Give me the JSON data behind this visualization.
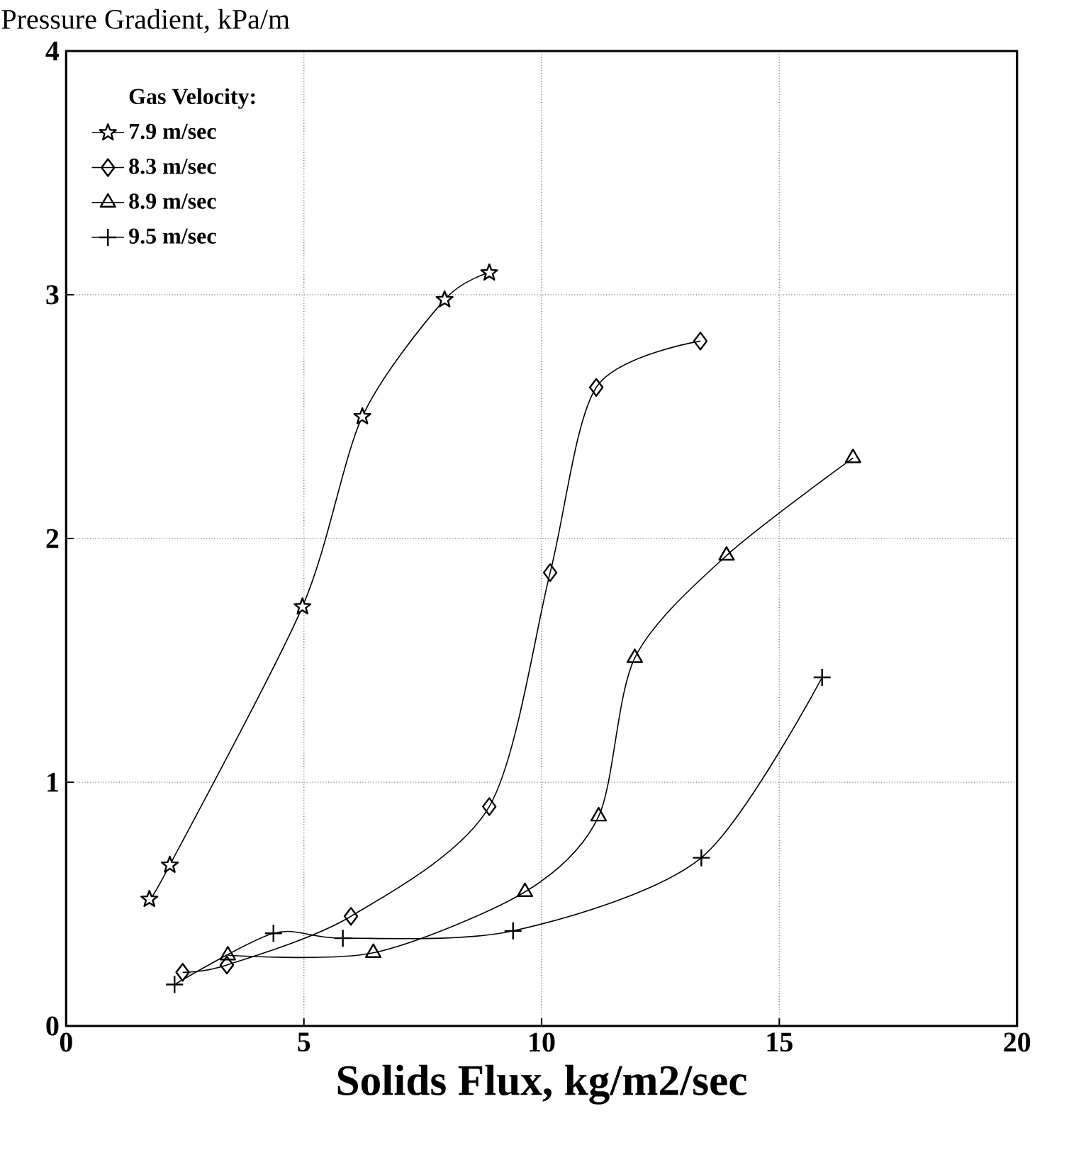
{
  "chart_data": {
    "type": "line",
    "ylabel": "Pressure Gradient, kPa/m",
    "xlabel": "Solids Flux, kg/m2/sec",
    "legend_title": "Gas Velocity:",
    "xlim": [
      0,
      20
    ],
    "ylim": [
      0,
      4
    ],
    "xticks": [
      0,
      5,
      10,
      15,
      20
    ],
    "yticks": [
      0,
      1,
      2,
      3,
      4
    ],
    "grid": true,
    "legend": "top left",
    "series": [
      {
        "name": "7.9 m/sec",
        "color": "#000000",
        "marker": "star",
        "x": [
          1.75,
          2.18,
          4.97,
          6.23,
          7.96,
          8.9
        ],
        "values": [
          0.52,
          0.66,
          1.72,
          2.5,
          2.98,
          3.09
        ]
      },
      {
        "name": "8.3 m/sec",
        "color": "#000000",
        "marker": "diamond",
        "x": [
          2.45,
          3.38,
          5.99,
          8.9,
          10.18,
          11.15,
          13.34
        ],
        "values": [
          0.22,
          0.25,
          0.45,
          0.9,
          1.86,
          2.62,
          2.81
        ]
      },
      {
        "name": "8.9 m/sec",
        "color": "#000000",
        "marker": "triangle",
        "x": [
          3.4,
          6.46,
          9.65,
          11.2,
          11.96,
          13.89,
          16.55
        ],
        "values": [
          0.29,
          0.3,
          0.55,
          0.86,
          1.51,
          1.93,
          2.33
        ]
      },
      {
        "name": "9.5 m/sec",
        "color": "#000000",
        "marker": "cross",
        "x": [
          2.28,
          4.36,
          5.82,
          9.4,
          13.36,
          15.9
        ],
        "values": [
          0.17,
          0.38,
          0.36,
          0.39,
          0.69,
          1.43
        ]
      }
    ]
  }
}
